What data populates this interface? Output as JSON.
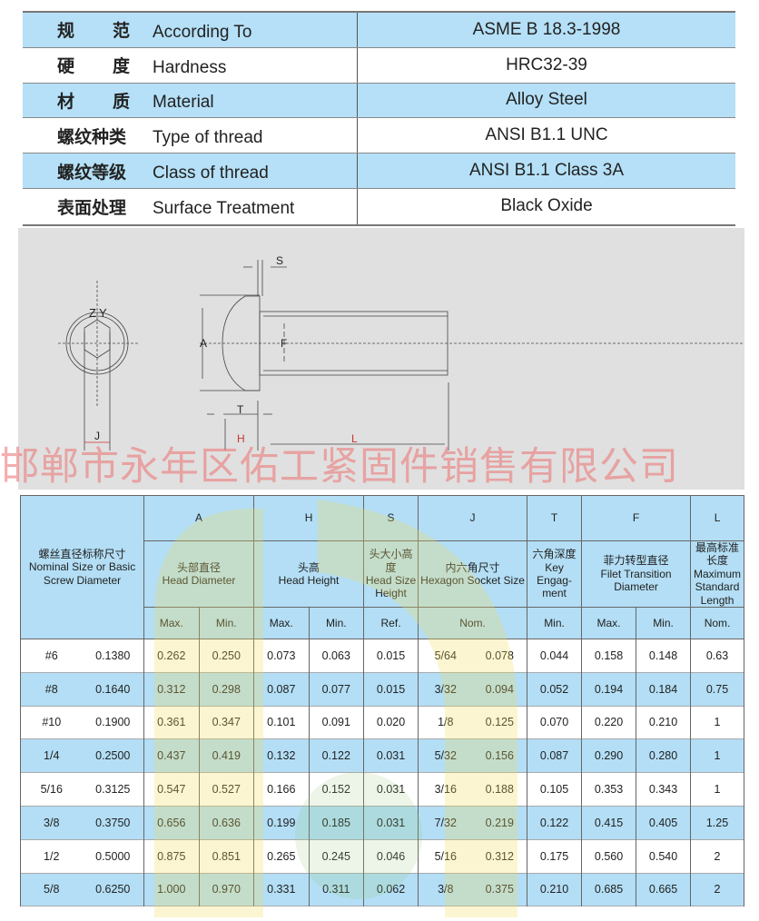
{
  "spec": [
    {
      "cn": [
        "规",
        "范"
      ],
      "en": "According To",
      "value": "ASME B 18.3-1998"
    },
    {
      "cn": [
        "硬",
        "度"
      ],
      "en": "Hardness",
      "value": "HRC32-39"
    },
    {
      "cn": [
        "材",
        "质"
      ],
      "en": "Material",
      "value": "Alloy Steel"
    },
    {
      "cn": [
        "螺纹种类"
      ],
      "en": "Type of thread",
      "value": "ANSI B1.1 UNC"
    },
    {
      "cn": [
        "螺纹等级"
      ],
      "en": "Class of thread",
      "value": "ANSI B1.1 Class 3A"
    },
    {
      "cn": [
        "表面处理"
      ],
      "en": "Surface Treatment",
      "value": "Black Oxide"
    }
  ],
  "drawing": {
    "labels": {
      "z": "Z",
      "y": "Y",
      "j": "J",
      "s": "S",
      "a": "A",
      "f": "F",
      "t": "T",
      "h": "H",
      "l": "L"
    },
    "watermark": "邯郸市永年区佑工紧固件销售有限公司"
  },
  "table": {
    "letters": [
      "A",
      "H",
      "S",
      "J",
      "T",
      "F",
      "L"
    ],
    "first_header": {
      "cn": "螺丝直径标称尺寸",
      "en": "Nominal Size or Basic Screw Diameter"
    },
    "desc": [
      {
        "cn": "头部直径",
        "en": "Head Diameter"
      },
      {
        "cn": "头高",
        "en": "Head Height"
      },
      {
        "cn": "头大小高度",
        "en": "Head Size Height"
      },
      {
        "cn": "内六角尺寸",
        "en": "Hexagon Socket Size"
      },
      {
        "cn": "六角深度",
        "en": "Key Engag-ment"
      },
      {
        "cn": "菲力转型直径",
        "en": "Filet Transition Diameter"
      },
      {
        "cn": "最高标准长度",
        "en": "Maximum Standard Length"
      }
    ],
    "sub": [
      "Max.",
      "Min.",
      "Max.",
      "Min.",
      "Ref.",
      "Nom.",
      "Min.",
      "Max.",
      "Min.",
      "Nom."
    ],
    "rows": [
      [
        "#6",
        "0.1380",
        "0.262",
        "0.250",
        "0.073",
        "0.063",
        "0.015",
        "5/64",
        "0.078",
        "0.044",
        "0.158",
        "0.148",
        "0.63"
      ],
      [
        "#8",
        "0.1640",
        "0.312",
        "0.298",
        "0.087",
        "0.077",
        "0.015",
        "3/32",
        "0.094",
        "0.052",
        "0.194",
        "0.184",
        "0.75"
      ],
      [
        "#10",
        "0.1900",
        "0.361",
        "0.347",
        "0.101",
        "0.091",
        "0.020",
        "1/8",
        "0.125",
        "0.070",
        "0.220",
        "0.210",
        "1"
      ],
      [
        "1/4",
        "0.2500",
        "0.437",
        "0.419",
        "0.132",
        "0.122",
        "0.031",
        "5/32",
        "0.156",
        "0.087",
        "0.290",
        "0.280",
        "1"
      ],
      [
        "5/16",
        "0.3125",
        "0.547",
        "0.527",
        "0.166",
        "0.152",
        "0.031",
        "3/16",
        "0.188",
        "0.105",
        "0.353",
        "0.343",
        "1"
      ],
      [
        "3/8",
        "0.3750",
        "0.656",
        "0.636",
        "0.199",
        "0.185",
        "0.031",
        "7/32",
        "0.219",
        "0.122",
        "0.415",
        "0.405",
        "1.25"
      ],
      [
        "1/2",
        "0.5000",
        "0.875",
        "0.851",
        "0.265",
        "0.245",
        "0.046",
        "5/16",
        "0.312",
        "0.175",
        "0.560",
        "0.540",
        "2"
      ],
      [
        "5/8",
        "0.6250",
        "1.000",
        "0.970",
        "0.331",
        "0.311",
        "0.062",
        "3/8",
        "0.375",
        "0.210",
        "0.685",
        "0.665",
        "2"
      ]
    ]
  },
  "colors": {
    "header_blue": "#b3def5",
    "watermark_red": "#eb7878",
    "drawing_bg": "#e0e0e0"
  }
}
